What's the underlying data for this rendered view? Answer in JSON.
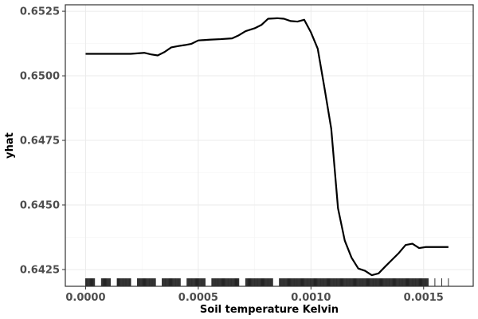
{
  "chart_data": {
    "type": "line",
    "title": "",
    "xlabel": "Soil temperature Kelvin",
    "ylabel": "yhat",
    "xlim": [
      -9e-05,
      0.00172
    ],
    "ylim": [
      0.64185,
      0.65275
    ],
    "x_ticks": [
      0.0,
      0.0005,
      0.001,
      0.0015
    ],
    "x_tick_labels": [
      "0.0000",
      "0.0005",
      "0.0010",
      "0.0015"
    ],
    "y_ticks": [
      0.6425,
      0.645,
      0.6475,
      0.65,
      0.6525
    ],
    "y_tick_labels": [
      "0.6425",
      "0.6450",
      "0.6475",
      "0.6500",
      "0.6525"
    ],
    "grid": true,
    "series": [
      {
        "color": "#000000",
        "x": [
          0.0,
          5e-05,
          0.0001,
          0.00015,
          0.0002,
          0.00023,
          0.00026,
          0.00029,
          0.00032,
          0.00035,
          0.00038,
          0.00041,
          0.00044,
          0.00047,
          0.0005,
          0.00055,
          0.0006,
          0.00065,
          0.00068,
          0.00071,
          0.00075,
          0.00078,
          0.00081,
          0.00085,
          0.00088,
          0.00091,
          0.00094,
          0.00097,
          0.001,
          0.00103,
          0.00106,
          0.00109,
          0.00112,
          0.00115,
          0.00118,
          0.00121,
          0.00124,
          0.00127,
          0.0013,
          0.00133,
          0.00136,
          0.00139,
          0.00142,
          0.00145,
          0.00148,
          0.00151,
          0.00154,
          0.00158,
          0.00161
        ],
        "y": [
          0.65085,
          0.65085,
          0.65085,
          0.65085,
          0.65085,
          0.65087,
          0.65089,
          0.65083,
          0.65079,
          0.65092,
          0.6511,
          0.65115,
          0.65119,
          0.65124,
          0.65137,
          0.6514,
          0.65142,
          0.65145,
          0.65157,
          0.65173,
          0.65184,
          0.65197,
          0.65221,
          0.65223,
          0.65221,
          0.65212,
          0.6521,
          0.65217,
          0.65168,
          0.65105,
          0.64953,
          0.64795,
          0.64487,
          0.64362,
          0.64296,
          0.64254,
          0.64245,
          0.64228,
          0.64235,
          0.64262,
          0.64288,
          0.64314,
          0.64345,
          0.6435,
          0.64333,
          0.64337,
          0.64337,
          0.64337,
          0.64337
        ]
      }
    ],
    "rug_x": [
      0.0,
      2e-05,
      4e-05,
      7e-05,
      9e-05,
      0.00011,
      0.00014,
      0.00016,
      0.00018,
      0.0002,
      0.00023,
      0.00025,
      0.00027,
      0.00029,
      0.00031,
      0.00034,
      0.00036,
      0.00038,
      0.0004,
      0.00042,
      0.00045,
      0.00047,
      0.00049,
      0.00051,
      0.00053,
      0.00056,
      0.00058,
      0.0006,
      0.00062,
      0.00064,
      0.00066,
      0.00068,
      0.00071,
      0.00073,
      0.00075,
      0.00077,
      0.00079,
      0.00081,
      0.00083,
      0.00086,
      0.00088,
      0.0009,
      0.00092,
      0.00094,
      0.00096,
      0.00098,
      0.001,
      0.00102,
      0.00104,
      0.00106,
      0.00108,
      0.0011,
      0.00112,
      0.00114,
      0.00116,
      0.00118,
      0.0012,
      0.00122,
      0.00124,
      0.00126,
      0.00128,
      0.0013,
      0.00132,
      0.00134,
      0.00136,
      0.00138,
      0.0014,
      0.00142,
      0.00144,
      0.00146,
      0.00148,
      0.0015,
      0.00152,
      0.00155,
      0.00158,
      0.00161
    ]
  }
}
